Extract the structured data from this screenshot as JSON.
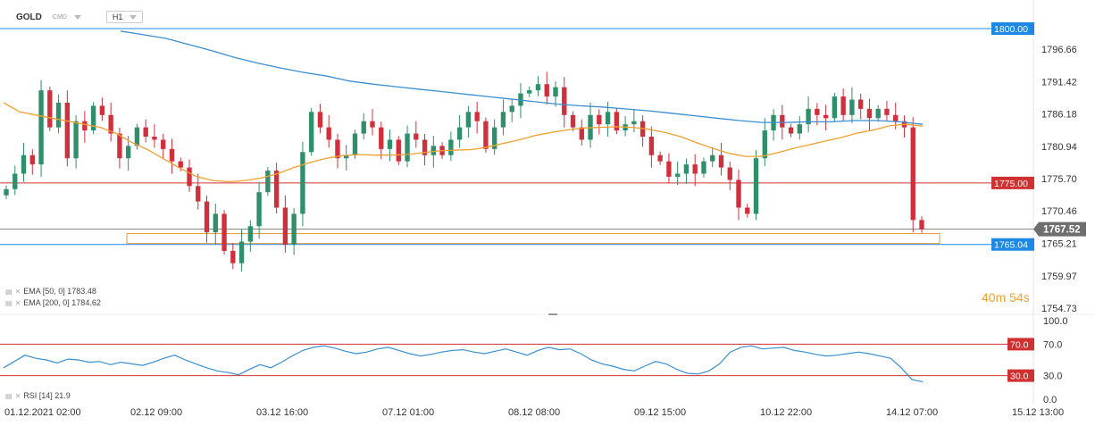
{
  "header": {
    "symbol": "GOLD",
    "market": "CMD",
    "timeframe": "H1"
  },
  "legend": {
    "ema50": "EMA [50, 0] 1783.48",
    "ema200": "EMA [200, 0] 1784.62",
    "rsi": "RSI [14] 21.9"
  },
  "countdown": {
    "minutes": "40",
    "m": "m",
    "seconds": "54",
    "s": "s"
  },
  "colors": {
    "up": "#2f8f6a",
    "down": "#d0303c",
    "ema50": "#f0a030",
    "ema200": "#3a8fd0",
    "level_red": "#d03030",
    "level_blue": "#1e88e5",
    "zone": "#e49a3a"
  },
  "chart_data": [
    {
      "type": "candlestick",
      "symbol": "GOLD",
      "timeframe": "H1",
      "ylim": [
        1754.73,
        1800.5
      ],
      "y_ticks": [
        "1796.66",
        "1791.42",
        "1786.18",
        "1780.94",
        "1775.70",
        "1770.46",
        "1765.21",
        "1759.97",
        "1754.73"
      ],
      "x_ticks": [
        "01.12.2021  02:00",
        "02.12  09:00",
        "03.12  16:00",
        "07.12  01:00",
        "08.12  08:00",
        "09.12  15:00",
        "10.12  22:00",
        "14.12  07:00",
        "15.12  13:00"
      ],
      "horizontal_levels": [
        {
          "value": 1800.0,
          "label": "1800.00",
          "color": "blue"
        },
        {
          "value": 1775.0,
          "label": "1775.00",
          "color": "red"
        },
        {
          "value": 1765.04,
          "label": "1765.04",
          "color": "blue"
        }
      ],
      "current_price": {
        "value": 1767.52,
        "label": "1767.52"
      },
      "zone": {
        "from": 1765.2,
        "to": 1766.8
      },
      "close_series": [
        1774.0,
        1776.5,
        1779.5,
        1778.0,
        1790.0,
        1784.0,
        1788.0,
        1779.0,
        1785.0,
        1783.5,
        1787.5,
        1786.0,
        1783.0,
        1779.0,
        1781.0,
        1784.0,
        1782.5,
        1782.0,
        1780.5,
        1778.5,
        1777.5,
        1774.5,
        1772.0,
        1767.0,
        1770.0,
        1764.0,
        1762.0,
        1765.5,
        1768.0,
        1773.5,
        1777.0,
        1771.0,
        1765.0,
        1770.0,
        1780.0,
        1786.5,
        1784.0,
        1782.0,
        1779.0,
        1779.5,
        1783.0,
        1785.0,
        1784.0,
        1780.5,
        1782.0,
        1778.5,
        1783.0,
        1782.0,
        1779.5,
        1781.0,
        1779.5,
        1782.0,
        1784.0,
        1786.5,
        1785.0,
        1780.5,
        1784.0,
        1786.5,
        1787.5,
        1789.5,
        1790.0,
        1791.0,
        1789.0,
        1790.5,
        1786.0,
        1784.0,
        1782.0,
        1786.0,
        1784.5,
        1786.5,
        1783.5,
        1784.5,
        1785.0,
        1782.5,
        1779.5,
        1778.5,
        1776.0,
        1776.5,
        1778.0,
        1776.5,
        1778.5,
        1779.5,
        1777.5,
        1775.5,
        1771.0,
        1770.0,
        1779.0,
        1783.5,
        1786.0,
        1784.0,
        1783.0,
        1784.5,
        1787.0,
        1786.0,
        1785.5,
        1789.0,
        1786.0,
        1788.5,
        1787.0,
        1785.5,
        1787.0,
        1786.0,
        1785.0,
        1784.0,
        1769.0,
        1767.5
      ],
      "ema50_series": [
        1788,
        1786.5,
        1786,
        1785.5,
        1785,
        1784.5,
        1784,
        1783,
        1781.5,
        1780.3,
        1778.8,
        1777.3,
        1776,
        1775.4,
        1775.2,
        1775.4,
        1775.8,
        1776.5,
        1777.5,
        1778.3,
        1779,
        1779.4,
        1779.6,
        1779.5,
        1779.5,
        1779.6,
        1779.9,
        1780.2,
        1780.3,
        1780.4,
        1780.8,
        1781.4,
        1782.0,
        1782.7,
        1783.2,
        1783.6,
        1783.9,
        1784.0,
        1784.1,
        1784.0,
        1783.7,
        1783.2,
        1782.5,
        1781.5,
        1780.6,
        1779.8,
        1779.3,
        1779.3,
        1779.9,
        1780.6,
        1781.2,
        1781.8,
        1782.4,
        1783.1,
        1783.6,
        1784.3,
        1784.5,
        1784.2
      ],
      "ema200_series": [
        1799.6,
        1799.0,
        1798.4,
        1797.4,
        1796.4,
        1795.3,
        1794.4,
        1793.6,
        1792.9,
        1792.3,
        1791.5,
        1791.0,
        1790.6,
        1790.2,
        1789.8,
        1789.4,
        1789.0,
        1788.6,
        1788.2,
        1787.8,
        1787.5,
        1787.3,
        1787.0,
        1786.7,
        1786.3,
        1785.9,
        1785.5,
        1785.1,
        1784.8,
        1784.8,
        1784.9,
        1784.9,
        1785.1,
        1785.1,
        1784.9,
        1784.5
      ],
      "sub_chart": {
        "type": "line",
        "name": "RSI [14]",
        "last_value": 21.9,
        "ylim": [
          0,
          100
        ],
        "y_ticks": [
          "100.0",
          "70.0",
          "30.0",
          "0.0"
        ],
        "levels": [
          {
            "value": 70,
            "label": "70.0"
          },
          {
            "value": 30,
            "label": "30.0"
          }
        ],
        "values": [
          40,
          48,
          56,
          52,
          50,
          46,
          51,
          50,
          47,
          48,
          44,
          47,
          45,
          43,
          47,
          52,
          56,
          50,
          45,
          40,
          36,
          34,
          31,
          38,
          44,
          40,
          47,
          55,
          62,
          66,
          68,
          65,
          61,
          58,
          60,
          64,
          66,
          62,
          58,
          55,
          57,
          60,
          62,
          63,
          60,
          58,
          61,
          64,
          60,
          56,
          62,
          66,
          63,
          64,
          58,
          50,
          45,
          42,
          38,
          36,
          42,
          48,
          45,
          38,
          33,
          32,
          36,
          45,
          60,
          66,
          68,
          64,
          65,
          66,
          62,
          60,
          57,
          55,
          56,
          58,
          60,
          58,
          55,
          52,
          40,
          25,
          22
        ]
      }
    }
  ]
}
